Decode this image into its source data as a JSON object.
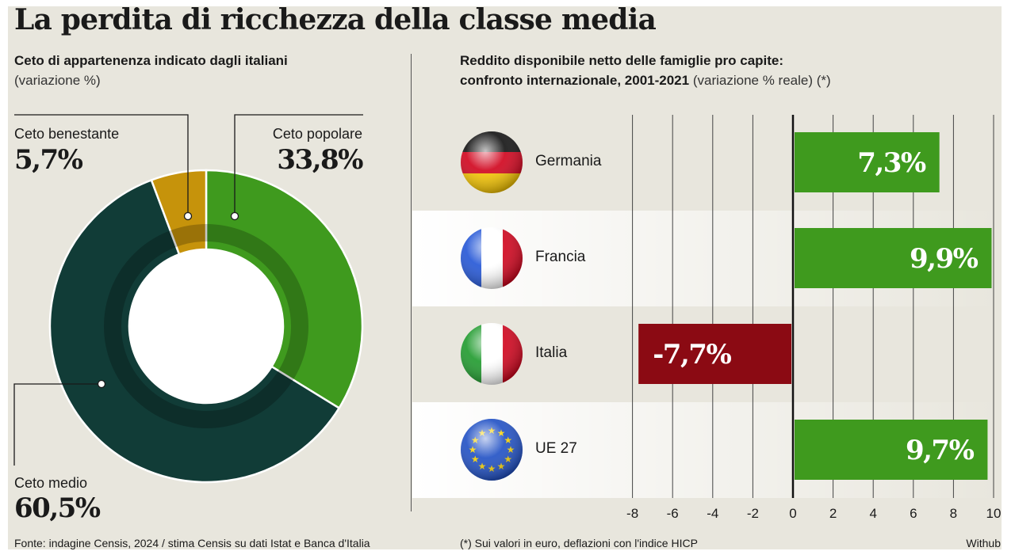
{
  "title": "La perdita di ricchezza della classe media",
  "donut": {
    "heading": "Ceto di appartenenza indicato dagli italiani",
    "subheading": "(variazione %)"
  },
  "bars": {
    "heading_line1": "Reddito disponibile netto delle famiglie pro capite:",
    "heading_line2_bold": "confronto internazionale, 2001-2021",
    "heading_line2_note": "(variazione % reale) (*)"
  },
  "footer": {
    "source": "Fonte: indagine Censis, 2024   /   stima Censis su dati Istat e Banca d'Italia",
    "note": "(*) Sui valori in euro, deflazioni con l'indice HICP",
    "credit": "Withub"
  },
  "colors": {
    "popolare": "#3f9a1e",
    "medio": "#113c37",
    "benestante": "#c6930b",
    "positive": "#3f9a1e",
    "negative": "#8b0a13"
  },
  "chart_data": [
    {
      "type": "pie",
      "title": "Ceto di appartenenza indicato dagli italiani",
      "subtitle": "(variazione %)",
      "slices": [
        {
          "label": "Ceto popolare",
          "value": 33.8,
          "display": "33,8%"
        },
        {
          "label": "Ceto medio",
          "value": 60.5,
          "display": "60,5%"
        },
        {
          "label": "Ceto benestante",
          "value": 5.7,
          "display": "5,7%"
        }
      ]
    },
    {
      "type": "bar",
      "orientation": "horizontal",
      "title": "Reddito disponibile netto delle famiglie pro capite: confronto internazionale, 2001-2021",
      "subtitle": "(variazione % reale) (*)",
      "categories": [
        "Germania",
        "Francia",
        "Italia",
        "UE 27"
      ],
      "values": [
        7.3,
        9.9,
        -7.7,
        9.7
      ],
      "labels": [
        "7,3%",
        "9,9%",
        "-7,7%",
        "9,7%"
      ],
      "xlim": [
        -10,
        10
      ],
      "xticks": [
        -8,
        -6,
        -4,
        -2,
        0,
        2,
        4,
        6,
        8,
        10
      ],
      "grid": true,
      "flags": [
        "flag-germany-icon",
        "flag-france-icon",
        "flag-italy-icon",
        "flag-eu-icon"
      ]
    }
  ]
}
